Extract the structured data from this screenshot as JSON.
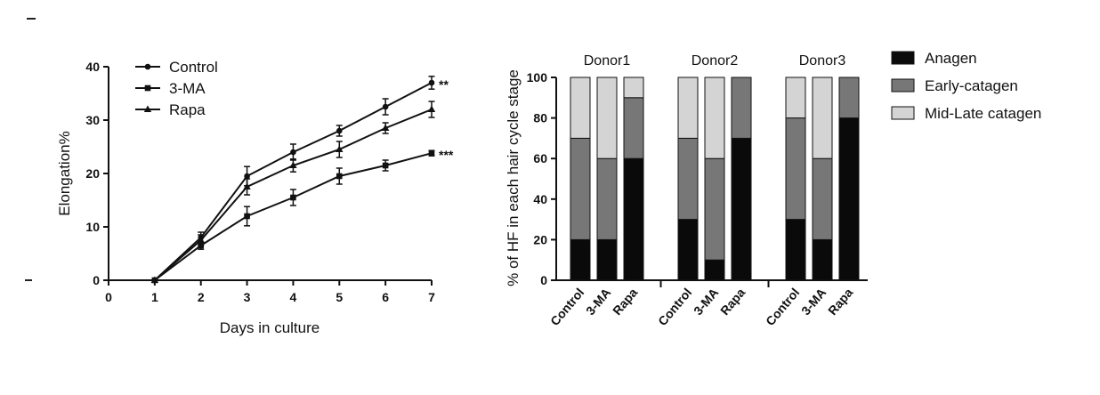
{
  "chart_data": [
    {
      "type": "line",
      "xlabel": "Days in culture",
      "ylabel": "Elongation%",
      "xlim": [
        0,
        7
      ],
      "ylim": [
        0,
        40
      ],
      "x_ticks": [
        0,
        1,
        2,
        3,
        4,
        5,
        6,
        7
      ],
      "y_ticks": [
        0,
        10,
        20,
        30,
        40
      ],
      "legend_position": "top-left",
      "x": [
        1,
        2,
        3,
        4,
        5,
        6,
        7
      ],
      "series": [
        {
          "name": "Control",
          "marker": "circle",
          "values": [
            0,
            8,
            19.5,
            24,
            28,
            32.5,
            37
          ],
          "errors": [
            0,
            1,
            1.8,
            1.5,
            1,
            1.5,
            1.2
          ],
          "annotation": "**"
        },
        {
          "name": "3-MA",
          "marker": "square",
          "values": [
            0,
            6.5,
            12,
            15.5,
            19.5,
            21.5,
            23.8
          ],
          "errors": [
            0,
            0.7,
            1.8,
            1.5,
            1.5,
            1,
            0.5
          ],
          "annotation": "***"
        },
        {
          "name": "Rapa",
          "marker": "triangle",
          "values": [
            0,
            7.5,
            17.5,
            21.5,
            24.5,
            28.5,
            32
          ],
          "errors": [
            0,
            1,
            1.5,
            1.2,
            1.5,
            1,
            1.5
          ],
          "annotation": ""
        }
      ]
    },
    {
      "type": "bar",
      "stacked": true,
      "ylabel": "% of HF in each hair cycle stage",
      "ylim": [
        0,
        100
      ],
      "y_ticks": [
        0,
        20,
        40,
        60,
        80,
        100
      ],
      "legend_position": "right",
      "groups": [
        {
          "name": "Donor1",
          "categories": [
            "Control",
            "3-MA",
            "Rapa"
          ]
        },
        {
          "name": "Donor2",
          "categories": [
            "Control",
            "3-MA",
            "Rapa"
          ]
        },
        {
          "name": "Donor3",
          "categories": [
            "Control",
            "3-MA",
            "Rapa"
          ]
        }
      ],
      "series": [
        {
          "name": "Anagen",
          "color": "#0a0a0a",
          "values": [
            [
              20,
              20,
              60
            ],
            [
              30,
              10,
              70
            ],
            [
              30,
              20,
              80
            ]
          ]
        },
        {
          "name": "Early-catagen",
          "color": "#777777",
          "values": [
            [
              50,
              40,
              30
            ],
            [
              40,
              50,
              30
            ],
            [
              50,
              40,
              20
            ]
          ]
        },
        {
          "name": "Mid-Late catagen",
          "color": "#d4d4d4",
          "values": [
            [
              30,
              40,
              10
            ],
            [
              30,
              40,
              0
            ],
            [
              20,
              40,
              0
            ]
          ]
        }
      ]
    }
  ]
}
